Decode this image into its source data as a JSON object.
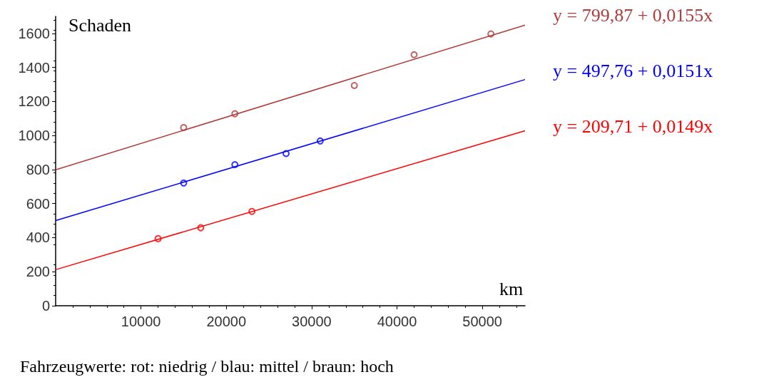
{
  "chart_data": {
    "type": "scatter",
    "xlabel": "km",
    "ylabel": "Schaden",
    "xlim": [
      0,
      55000
    ],
    "xticks": [
      10000,
      20000,
      30000,
      40000,
      50000
    ],
    "ylim": [
      0,
      1700
    ],
    "yticks": [
      0,
      200,
      400,
      600,
      800,
      1000,
      1200,
      1400,
      1600
    ],
    "grid": false,
    "series": [
      {
        "marker": "circle",
        "color": "#b03c3c",
        "x": [
          15000,
          21000,
          35000,
          42000,
          51000
        ],
        "values": [
          1047,
          1128,
          1294,
          1475,
          1597
        ]
      },
      {
        "marker": "circle",
        "color": "#0000ff",
        "x": [
          15000,
          21000,
          27000,
          31000
        ],
        "values": [
          721,
          829,
          894,
          968
        ]
      },
      {
        "marker": "circle",
        "color": "#ff0000",
        "x": [
          12000,
          17000,
          23000
        ],
        "values": [
          394,
          458,
          554
        ]
      },
      {
        "type": "line",
        "marker": "none",
        "color": "#b03c3c",
        "x": [
          0,
          55000
        ],
        "values": [
          799,
          1649
        ]
      },
      {
        "type": "line",
        "marker": "none",
        "color": "#0000ff",
        "x": [
          0,
          55000
        ],
        "values": [
          500,
          1329
        ]
      },
      {
        "type": "line",
        "marker": "none",
        "color": "#ff0000",
        "x": [
          0,
          55000
        ],
        "values": [
          212,
          1028
        ]
      }
    ],
    "annotations": [
      "y = 799,87 + 0,0155x",
      "y = 497,76 + 0,0151x",
      "y = 209,71 + 0,0149x",
      "Fahrzeugwerte: rot: niedrig / blau: mittel / braun: hoch"
    ]
  }
}
